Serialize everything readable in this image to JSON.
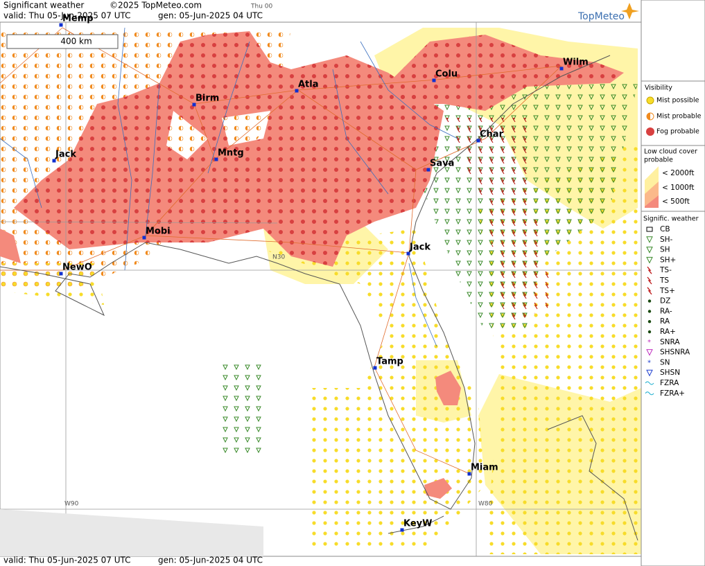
{
  "header": {
    "title": "Significant weather",
    "copyright": "©2025 TopMeteo.com",
    "run": "Thu 00",
    "valid": "valid:  Thu  05-Jun-2025  07 UTC",
    "gen": "gen:  05-Jun-2025  04 UTC",
    "logo": "TopMeteo"
  },
  "map": {
    "scale": "400 km",
    "cities": [
      "Memp",
      "Birm",
      "Atla",
      "Colu",
      "Wilm",
      "Char",
      "Sava",
      "Jack",
      "Mntg",
      "Mobi",
      "NewO",
      "Jack",
      "Tamp",
      "Miam",
      "KeyW"
    ],
    "grid_labels": [
      "N30",
      "W90",
      "W80"
    ]
  },
  "legend": {
    "visibility": {
      "title": "Visibility",
      "items": [
        "Mist possible",
        "Mist probable",
        "Fog probable"
      ]
    },
    "low_cloud": {
      "title_lines": [
        "Low cloud cover",
        "probable"
      ],
      "items": [
        "< 2000ft",
        "< 1000ft",
        "<  500ft"
      ]
    },
    "weather": {
      "title": "Signific. weather",
      "items": [
        "CB",
        "SH-",
        "SH",
        "SH+",
        "TS-",
        "TS",
        "TS+",
        "DZ",
        "RA-",
        "RA",
        "RA+",
        "SNRA",
        "SHSNRA",
        "SN",
        "SHSN",
        "FZRA",
        "FZRA+"
      ]
    }
  },
  "footer": {
    "valid": "valid:  Thu  05-Jun-2025  07 UTC",
    "gen": "gen:  05-Jun-2025  04 UTC"
  }
}
